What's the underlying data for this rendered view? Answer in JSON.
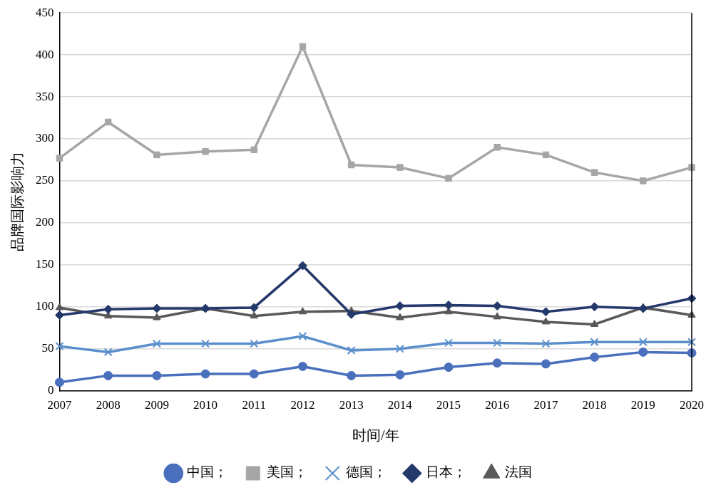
{
  "chart_data": {
    "type": "line",
    "x_label": "时间/年",
    "y_label": "品牌国际影响力",
    "categories": [
      "2007",
      "2008",
      "2009",
      "2010",
      "2011",
      "2012",
      "2013",
      "2014",
      "2015",
      "2016",
      "2017",
      "2018",
      "2019",
      "2020"
    ],
    "series": [
      {
        "name": "中国；",
        "color": "#4a6fbd",
        "marker": "circle",
        "values": [
          10,
          18,
          18,
          20,
          20,
          29,
          18,
          19,
          28,
          33,
          32,
          40,
          46,
          45
        ]
      },
      {
        "name": "美国；",
        "color": "#a6a6a6",
        "marker": "square",
        "values": [
          277,
          320,
          281,
          285,
          287,
          410,
          269,
          266,
          253,
          290,
          281,
          260,
          250,
          266
        ]
      },
      {
        "name": "德国；",
        "color": "#5b8fcc",
        "marker": "x",
        "values": [
          53,
          46,
          56,
          56,
          56,
          65,
          48,
          50,
          57,
          57,
          56,
          58,
          58,
          58
        ]
      },
      {
        "name": "日本；",
        "color": "#24396b",
        "marker": "diamond",
        "values": [
          90,
          97,
          98,
          98,
          99,
          149,
          91,
          101,
          102,
          101,
          94,
          100,
          98,
          110
        ]
      },
      {
        "name": "法国",
        "color": "#595959",
        "marker": "triangle",
        "values": [
          99,
          89,
          87,
          98,
          89,
          94,
          95,
          87,
          94,
          88,
          82,
          79,
          99,
          90
        ]
      }
    ],
    "ylim": [
      0,
      450
    ],
    "yticks": [
      0,
      50,
      100,
      150,
      200,
      250,
      300,
      350,
      400,
      450
    ],
    "grid": true,
    "legend": "bottom"
  }
}
